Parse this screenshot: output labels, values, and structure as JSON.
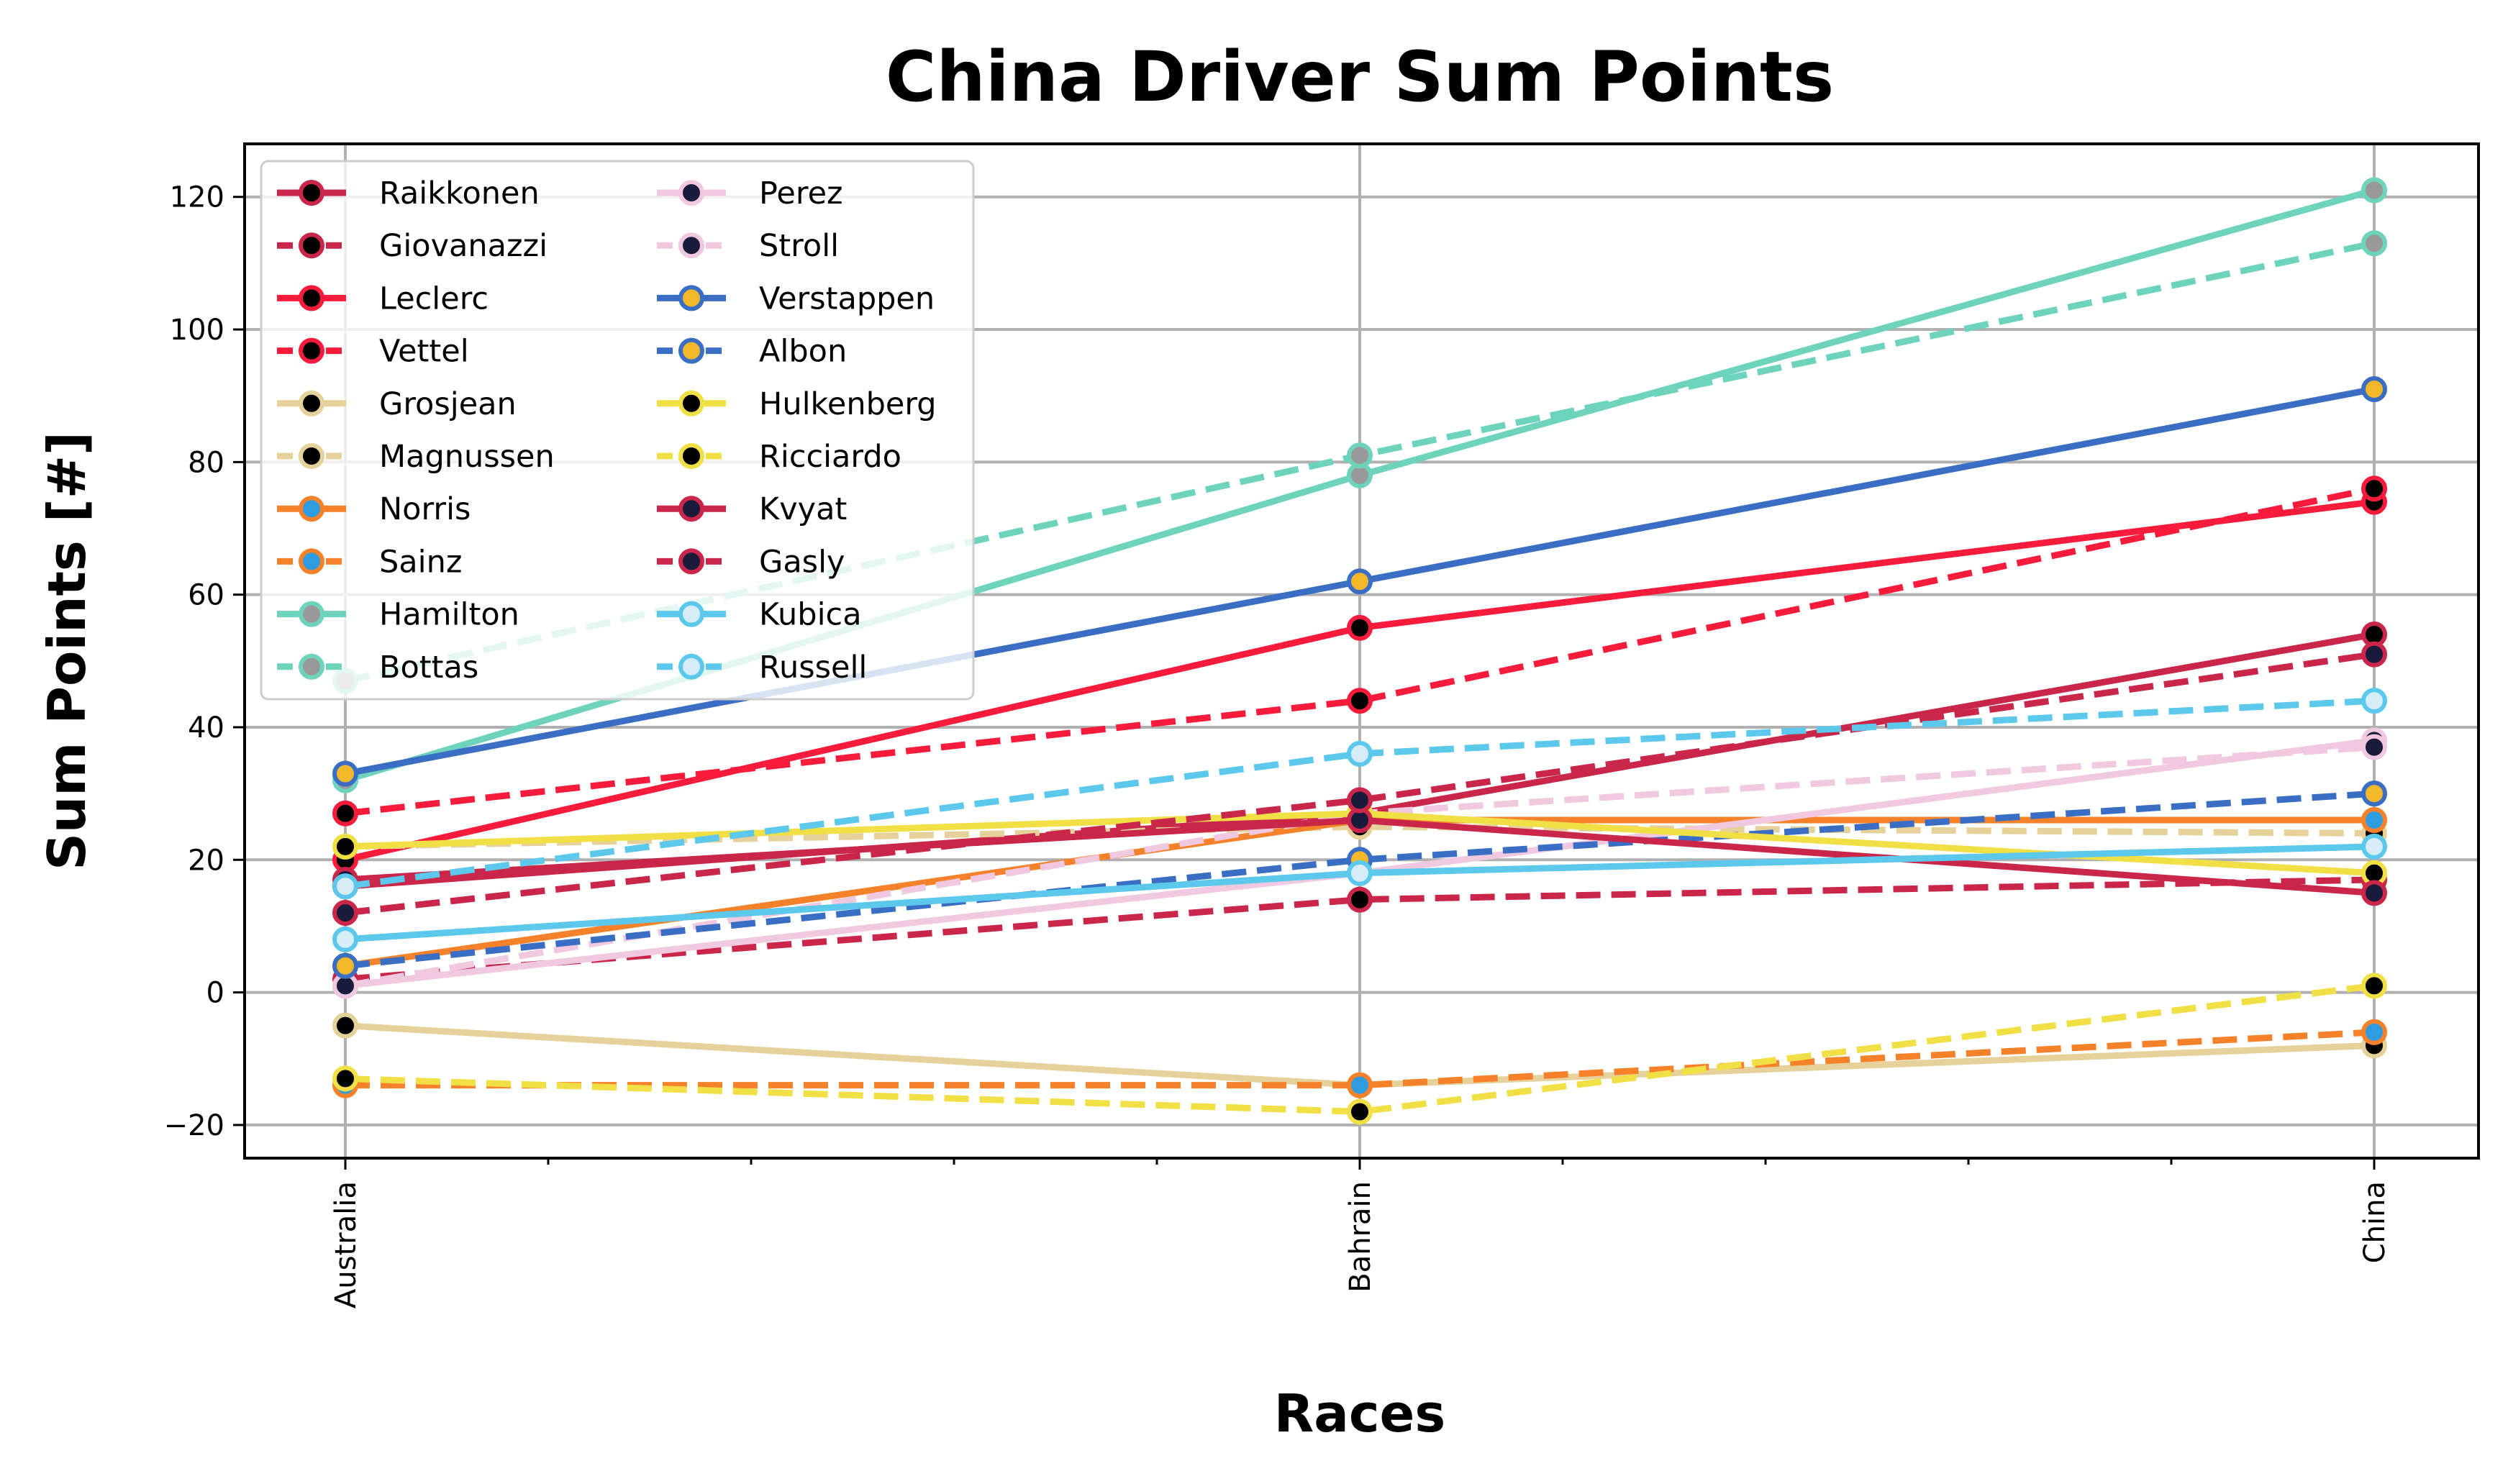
{
  "chart_data": {
    "type": "line",
    "title": "China Driver Sum Points",
    "xlabel": "Races",
    "ylabel": "Sum Points [#]",
    "categories": [
      "Australia",
      "Bahrain",
      "China"
    ],
    "ylim": [
      -25,
      128
    ],
    "yticks": [
      -20,
      0,
      20,
      40,
      60,
      80,
      100,
      120
    ],
    "ytick_labels": [
      "−20",
      "0",
      "20",
      "40",
      "60",
      "80",
      "100",
      "120"
    ],
    "grid": true,
    "legend_position": "top-left",
    "series": [
      {
        "name": "Raikkonen",
        "values": [
          16,
          27,
          54
        ],
        "color": "#C9264A",
        "style": "solid",
        "marker_face": "#000000"
      },
      {
        "name": "Giovanazzi",
        "values": [
          2,
          14,
          17
        ],
        "color": "#C9264A",
        "style": "dashed",
        "marker_face": "#000000"
      },
      {
        "name": "Leclerc",
        "values": [
          20,
          55,
          74
        ],
        "color": "#F91B3C",
        "style": "solid",
        "marker_face": "#000000"
      },
      {
        "name": "Vettel",
        "values": [
          27,
          44,
          76
        ],
        "color": "#F91B3C",
        "style": "dashed",
        "marker_face": "#000000"
      },
      {
        "name": "Grosjean",
        "values": [
          -5,
          -14,
          -8
        ],
        "color": "#E6D19A",
        "style": "solid",
        "marker_face": "#000000"
      },
      {
        "name": "Magnussen",
        "values": [
          22,
          25,
          24
        ],
        "color": "#E6D19A",
        "style": "dashed",
        "marker_face": "#000000"
      },
      {
        "name": "Norris",
        "values": [
          4,
          26,
          26
        ],
        "color": "#F5822A",
        "style": "solid",
        "marker_face": "#2F9BE0"
      },
      {
        "name": "Sainz",
        "values": [
          -14,
          -14,
          -6
        ],
        "color": "#F5822A",
        "style": "dashed",
        "marker_face": "#2F9BE0"
      },
      {
        "name": "Hamilton",
        "values": [
          32,
          78,
          121
        ],
        "color": "#6ED3BC",
        "style": "solid",
        "marker_face": "#999999"
      },
      {
        "name": "Bottas",
        "values": [
          47,
          81,
          113
        ],
        "color": "#6ED3BC",
        "style": "dashed",
        "marker_face": "#999999"
      },
      {
        "name": "Perez",
        "values": [
          1,
          18,
          38
        ],
        "color": "#F0C8DF",
        "style": "solid",
        "marker_face": "#1A1A3A"
      },
      {
        "name": "Stroll",
        "values": [
          1,
          27,
          37
        ],
        "color": "#F0C8DF",
        "style": "dashed",
        "marker_face": "#1A1A3A"
      },
      {
        "name": "Verstappen",
        "values": [
          33,
          62,
          91
        ],
        "color": "#3A6EC4",
        "style": "solid",
        "marker_face": "#F2B82A"
      },
      {
        "name": "Albon",
        "values": [
          4,
          20,
          30
        ],
        "color": "#3A6EC4",
        "style": "dashed",
        "marker_face": "#F2B82A"
      },
      {
        "name": "Hulkenberg",
        "values": [
          22,
          27,
          18
        ],
        "color": "#F0E045",
        "style": "solid",
        "marker_face": "#000000"
      },
      {
        "name": "Ricciardo",
        "values": [
          -13,
          -18,
          1
        ],
        "color": "#F0E045",
        "style": "dashed",
        "marker_face": "#000000"
      },
      {
        "name": "Kvyat",
        "values": [
          17,
          26,
          15
        ],
        "color": "#C9264A",
        "style": "solid",
        "marker_face": "#1A1A3A"
      },
      {
        "name": "Gasly",
        "values": [
          12,
          29,
          51
        ],
        "color": "#C9264A",
        "style": "dashed",
        "marker_face": "#1A1A3A"
      },
      {
        "name": "Kubica",
        "values": [
          8,
          18,
          22
        ],
        "color": "#5BC8EC",
        "style": "solid",
        "marker_face": "#D6ECF8"
      },
      {
        "name": "Russell",
        "values": [
          16,
          36,
          44
        ],
        "color": "#5BC8EC",
        "style": "dashed",
        "marker_face": "#D6ECF8"
      }
    ]
  }
}
